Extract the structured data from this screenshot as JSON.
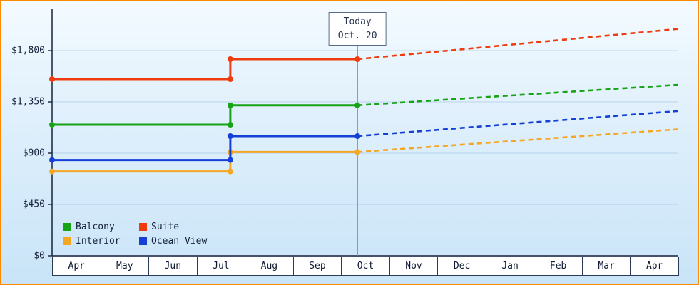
{
  "frame": {
    "border_color": "#ff8a00"
  },
  "chart_data": {
    "type": "line",
    "x_axis": {
      "months": [
        "Apr",
        "May",
        "Jun",
        "Jul",
        "Aug",
        "Sep",
        "Oct",
        "Nov",
        "Dec",
        "Jan",
        "Feb",
        "Mar",
        "Apr"
      ]
    },
    "y_axis": {
      "ticks": [
        {
          "label": "$0",
          "value": 0
        },
        {
          "label": "$450",
          "value": 450
        },
        {
          "label": "$900",
          "value": 900
        },
        {
          "label": "$1,350",
          "value": 1350
        },
        {
          "label": "$1,800",
          "value": 1800
        }
      ]
    },
    "today": {
      "line1": "Today",
      "line2": "Oct. 20",
      "month_position": 6.34
    },
    "step_month_position": 3.7,
    "series": [
      {
        "name": "Balcony",
        "color": "#16a316",
        "start_value": 1150,
        "stepped_value": 1320,
        "projected_end_value": 1500
      },
      {
        "name": "Suite",
        "color": "#ee3c10",
        "start_value": 1550,
        "stepped_value": 1725,
        "projected_end_value": 1990
      },
      {
        "name": "Interior",
        "color": "#f5a623",
        "start_value": 740,
        "stepped_value": 910,
        "projected_end_value": 1110
      },
      {
        "name": "Ocean View",
        "color": "#1540d8",
        "start_value": 840,
        "stepped_value": 1050,
        "projected_end_value": 1270
      }
    ],
    "legend": {
      "order": [
        "Balcony",
        "Suite",
        "Interior",
        "Ocean View"
      ]
    }
  }
}
